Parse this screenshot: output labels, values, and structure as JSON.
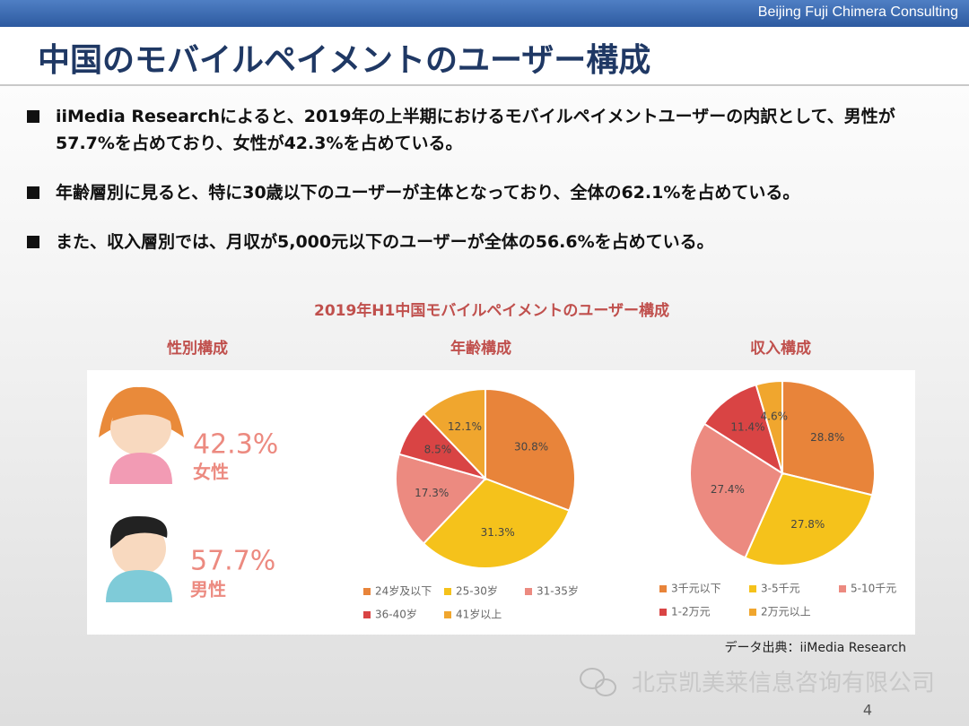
{
  "header": {
    "company": "Beijing Fuji Chimera Consulting",
    "title": "中国のモバイルペイメントのユーザー構成"
  },
  "bullets": [
    "iiMedia Researchによると、2019年の上半期におけるモバイルペイメントユーザーの内訳として、男性が57.7%を占めており、女性が42.3%を占めている。",
    "年齢層別に見ると、特に30歳以下のユーザーが主体となっており、全体の62.1%を占めている。",
    "また、収入層別では、月収が5,000元以下のユーザーが全体の56.6%を占めている。"
  ],
  "figure": {
    "title": "2019年H1中国モバイルペイメントのユーザー構成",
    "source": "データ出典：iiMedia Research"
  },
  "gender": {
    "title": "性別構成",
    "items": [
      {
        "value": "42.3%",
        "label": "女性"
      },
      {
        "value": "57.7%",
        "label": "男性"
      }
    ]
  },
  "chart_data": [
    {
      "type": "pie",
      "title": "年齢構成",
      "categories": [
        "24岁及以下",
        "25-30岁",
        "31-35岁",
        "36-40岁",
        "41岁以上"
      ],
      "values": [
        30.8,
        31.3,
        17.3,
        8.5,
        12.1
      ],
      "value_labels": [
        "30.8%",
        "31.3%",
        "17.3%",
        "8.5%",
        "12.1%"
      ],
      "colors": [
        "#e8843a",
        "#f5c21b",
        "#ec8a80",
        "#d94444",
        "#f0a62e"
      ]
    },
    {
      "type": "pie",
      "title": "収入構成",
      "categories": [
        "3千元以下",
        "3-5千元",
        "5-10千元",
        "1-2万元",
        "2万元以上"
      ],
      "values": [
        28.8,
        27.8,
        27.4,
        11.4,
        4.6
      ],
      "value_labels": [
        "28.8%",
        "27.8%",
        "27.4%",
        "11.4%",
        "4.6%"
      ],
      "colors": [
        "#e8843a",
        "#f5c21b",
        "#ec8a80",
        "#d94444",
        "#f0a62e"
      ]
    }
  ],
  "watermark": "北京凯美莱信息咨询有限公司",
  "page": "4"
}
